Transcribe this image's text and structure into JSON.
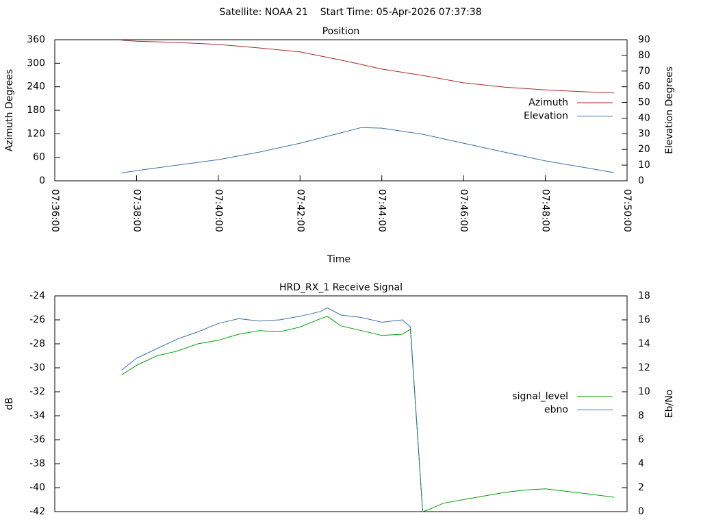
{
  "title": "Satellite: NOAA 21    Start Time: 05-Apr-2026 07:37:38",
  "chart_data": [
    {
      "type": "line",
      "title": "Position",
      "xlabel": "Time",
      "ylabel": "Azimuth Degrees",
      "y2label": "Elevation Degrees",
      "x": [
        "07:37:38",
        "07:38:00",
        "07:39:00",
        "07:40:00",
        "07:41:00",
        "07:42:00",
        "07:43:00",
        "07:43:30",
        "07:44:00",
        "07:45:00",
        "07:46:00",
        "07:47:00",
        "07:48:00",
        "07:49:00",
        "07:49:41"
      ],
      "series": [
        {
          "name": "Azimuth",
          "color": "#a52a2a",
          "values": [
            359,
            356,
            353,
            348,
            339,
            329,
            308,
            297,
            285,
            269,
            250,
            239,
            232,
            227,
            224
          ]
        },
        {
          "name": "Elevation",
          "color": "#3a6ea5",
          "axis": "y2",
          "values": [
            5,
            6.5,
            10,
            13.5,
            18.3,
            24,
            30.6,
            34,
            33.6,
            29.7,
            24,
            18.3,
            12.7,
            8.3,
            5.2
          ]
        }
      ],
      "xlim": [
        "07:36:00",
        "07:50:00"
      ],
      "xticks": [
        "07:36:00",
        "07:38:00",
        "07:40:00",
        "07:42:00",
        "07:44:00",
        "07:46:00",
        "07:48:00",
        "07:50:00"
      ],
      "ylim": [
        0,
        360
      ],
      "yticks": [
        0,
        60,
        120,
        180,
        240,
        300,
        360
      ],
      "y2lim": [
        0,
        90
      ],
      "y2ticks": [
        0,
        10,
        20,
        30,
        40,
        50,
        60,
        70,
        80,
        90
      ],
      "legend": "right"
    },
    {
      "type": "line",
      "title": "HRD_RX_1 Receive Signal",
      "ylabel": "dB",
      "y2label": "Eb/No",
      "x": [
        "07:37:38",
        "07:38:00",
        "07:38:30",
        "07:39:00",
        "07:39:30",
        "07:40:00",
        "07:40:30",
        "07:41:00",
        "07:41:30",
        "07:42:00",
        "07:42:30",
        "07:42:40",
        "07:43:00",
        "07:43:30",
        "07:44:00",
        "07:44:30",
        "07:44:42",
        "07:45:00",
        "07:45:10",
        "07:45:30",
        "07:46:00",
        "07:46:30",
        "07:47:00",
        "07:47:30",
        "07:48:00",
        "07:48:30",
        "07:49:00",
        "07:49:41"
      ],
      "series": [
        {
          "name": "signal_level",
          "color": "#00a000",
          "values": [
            -30.6,
            -29.8,
            -29.0,
            -28.6,
            -28.0,
            -27.7,
            -27.2,
            -26.9,
            -27.0,
            -26.6,
            -25.9,
            -25.7,
            -26.5,
            -26.9,
            -27.3,
            -27.2,
            -26.8,
            -42.0,
            -41.8,
            -41.3,
            -41.0,
            -40.7,
            -40.4,
            -40.2,
            -40.1,
            -40.3,
            -40.5,
            -40.8
          ]
        },
        {
          "name": "ebno",
          "color": "#3a6ea5",
          "axis": "y2",
          "values": [
            11.8,
            12.8,
            13.6,
            14.4,
            15.0,
            15.7,
            16.1,
            15.9,
            16.0,
            16.3,
            16.7,
            17.0,
            16.4,
            16.2,
            15.8,
            16.0,
            15.4,
            0,
            null,
            null,
            null,
            null,
            null,
            null,
            null,
            null,
            null,
            null
          ]
        }
      ],
      "xlim": [
        "07:36:00",
        "07:50:00"
      ],
      "ylim": [
        -42,
        -24
      ],
      "yticks": [
        -42,
        -40,
        -38,
        -36,
        -34,
        -32,
        -30,
        -28,
        -26,
        -24
      ],
      "y2lim": [
        0,
        18
      ],
      "y2ticks": [
        0,
        2,
        4,
        6,
        8,
        10,
        12,
        14,
        16,
        18
      ],
      "legend": "right"
    }
  ]
}
